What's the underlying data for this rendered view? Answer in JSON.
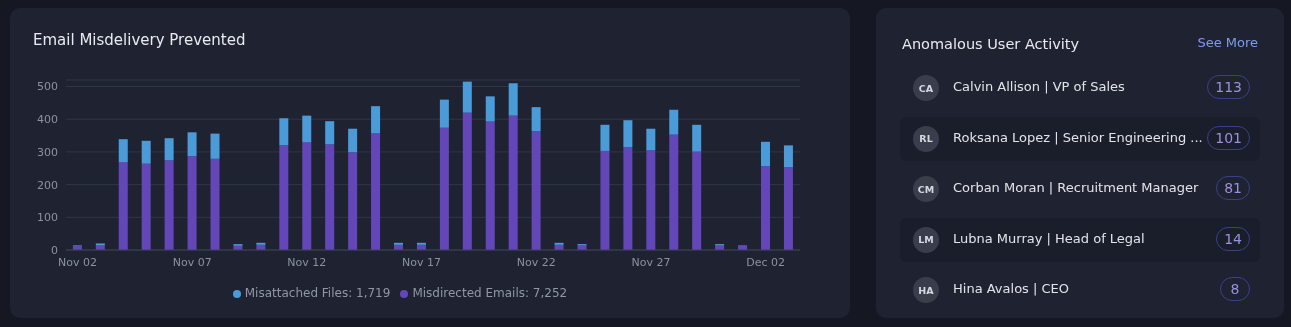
{
  "chart_data": [
    {
      "type": "bar",
      "title": "Email Misdelivery Prevented",
      "stacked": true,
      "categories": [
        "Nov 02",
        null,
        null,
        null,
        null,
        "Nov 07",
        null,
        null,
        null,
        null,
        "Nov 12",
        null,
        null,
        null,
        null,
        "Nov 17",
        null,
        null,
        null,
        null,
        "Nov 22",
        null,
        null,
        null,
        null,
        "Nov 27",
        null,
        null,
        null,
        null,
        "Dec 02",
        null
      ],
      "series": [
        {
          "name": "Misdirected Emails: 7,252",
          "color": "#6347b8",
          "values": [
            12,
            14,
            269,
            264,
            274,
            287,
            279,
            13,
            16,
            320,
            330,
            323,
            299,
            357,
            16,
            16,
            374,
            420,
            393,
            411,
            364,
            16,
            14,
            303,
            315,
            305,
            353,
            301,
            14,
            15,
            257,
            253
          ]
        },
        {
          "name": "Misattached Files: 1,719",
          "color": "#4b9bd9",
          "values": [
            2,
            6,
            70,
            70,
            68,
            73,
            77,
            5,
            6,
            83,
            81,
            71,
            72,
            83,
            6,
            6,
            86,
            95,
            77,
            99,
            73,
            6,
            4,
            80,
            82,
            66,
            76,
            82,
            4,
            0,
            74,
            67
          ]
        }
      ],
      "ylim": [
        0,
        520
      ],
      "yticks": [
        0,
        100,
        200,
        300,
        400,
        500
      ],
      "grid": "y",
      "legend": "bottom"
    },
    {
      "type": "other",
      "title": "Anomalous User Activity",
      "annotations": [
        "See More",
        "CA",
        "RL",
        "CM",
        "LM",
        "HA"
      ],
      "categories": [
        "Calvin Allison | VP of Sales",
        "Roksana Lopez | Senior Engineering ...",
        "Corban Moran | Recruitment Manager",
        "Lubna Murray | Head of Legal",
        "Hina Avalos | CEO"
      ],
      "values": [
        113,
        101,
        81,
        14,
        8
      ],
      "data_labels": true
    }
  ]
}
